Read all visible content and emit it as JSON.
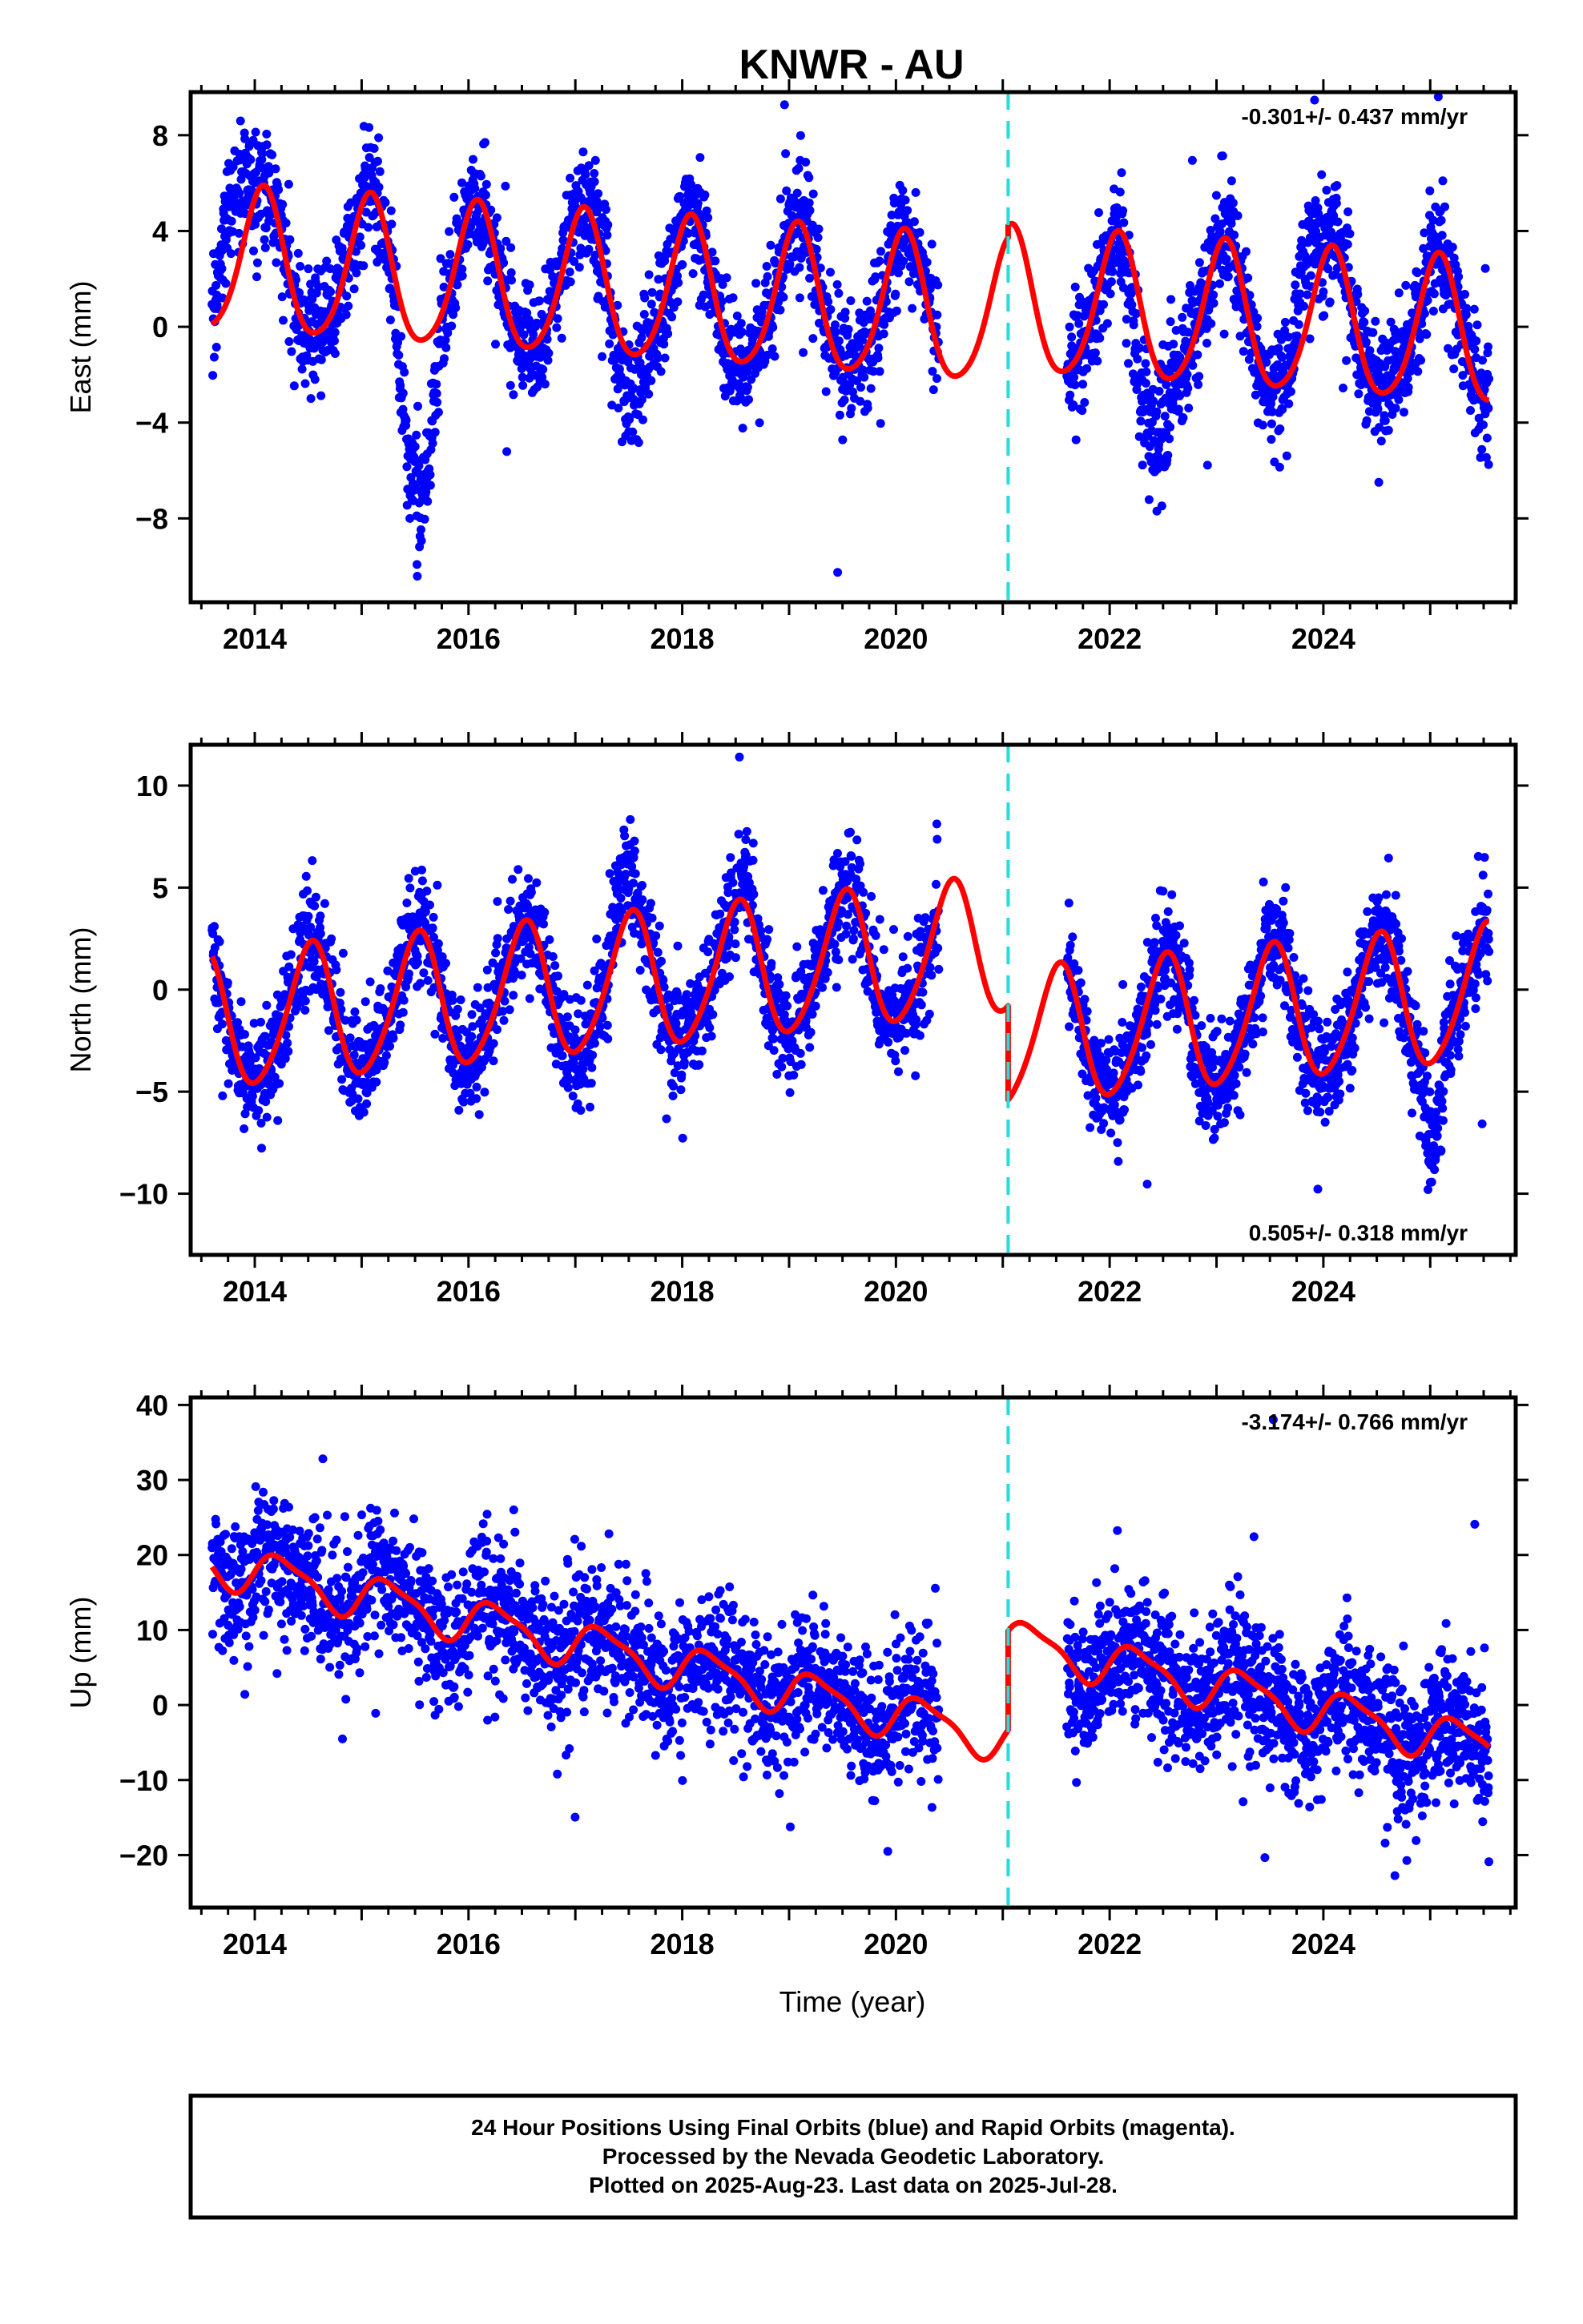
{
  "title": "KNWR - AU",
  "x_axis_title": "Time (year)",
  "footer": {
    "lines": [
      "24 Hour Positions Using Final Orbits (blue) and Rapid Orbits (magenta).",
      "Processed by the Nevada Geodetic Laboratory.",
      "Plotted on 2025-Aug-23. Last data on 2025-Jul-28."
    ]
  },
  "colors": {
    "data_points": "#0000ff",
    "model_line": "#ff0000",
    "equipment_change": "#22dddd",
    "frame": "#000000"
  },
  "chart_data": [
    {
      "type": "scatter",
      "component": "east",
      "ylabel": "East (mm)",
      "rate_label": "-0.301+/- 0.437 mm/yr",
      "xlim": [
        2013.4,
        2025.8
      ],
      "ylim": [
        -11.5,
        9.8
      ],
      "xticks": [
        2014,
        2016,
        2018,
        2020,
        2022,
        2024
      ],
      "yticks": [
        -8,
        -4,
        0,
        4,
        8
      ],
      "ytick_labels": [
        "−8",
        "−4",
        "0",
        "4",
        "8"
      ],
      "xtick_labels": [
        "2014",
        "2016",
        "2018",
        "2020",
        "2022",
        "2024"
      ],
      "offset_epoch": 2021.05,
      "model": {
        "rate": -0.301,
        "ref_year": 2019.5,
        "offset_before": 0.9,
        "offset_after": 1.4,
        "annual_amplitude": 3.0,
        "annual_phase": 1.1,
        "semiannual_amplitude": 0.4,
        "semiannual_phase": 0.3
      },
      "data_segments": [
        {
          "from": 2013.6,
          "to": 2020.4,
          "n": 2000
        },
        {
          "from": 2021.6,
          "to": 2025.55,
          "n": 1300
        }
      ],
      "anomalies": [
        {
          "from": 2013.6,
          "to": 2014.0,
          "shift": 3.5
        },
        {
          "from": 2015.3,
          "to": 2015.75,
          "shift": -6.5
        },
        {
          "from": 2017.3,
          "to": 2017.7,
          "shift": -2.0
        },
        {
          "from": 2022.1,
          "to": 2022.6,
          "shift": -3.5
        },
        {
          "from": 2023.7,
          "to": 2024.0,
          "shift": 3.5
        }
      ],
      "scatter_sd": 1.2
    },
    {
      "type": "scatter",
      "component": "north",
      "ylabel": "North (mm)",
      "rate_label": "0.505+/- 0.318 mm/yr",
      "xlim": [
        2013.4,
        2025.8
      ],
      "ylim": [
        -13,
        12
      ],
      "xticks": [
        2014,
        2016,
        2018,
        2020,
        2022,
        2024
      ],
      "yticks": [
        -10,
        -5,
        0,
        5,
        10
      ],
      "ytick_labels": [
        "−10",
        "−5",
        "0",
        "5",
        "10"
      ],
      "xtick_labels": [
        "2014",
        "2016",
        "2018",
        "2020",
        "2022",
        "2024"
      ],
      "offset_epoch": 2021.05,
      "model": {
        "rate": 0.505,
        "ref_year": 2019.5,
        "offset_before": 1.3,
        "offset_after": -3.3,
        "annual_amplitude": 3.3,
        "annual_phase": -1.7,
        "semiannual_amplitude": 0.4,
        "semiannual_phase": 0.5
      },
      "data_segments": [
        {
          "from": 2013.6,
          "to": 2020.4,
          "n": 2000
        },
        {
          "from": 2021.6,
          "to": 2025.55,
          "n": 1300
        }
      ],
      "anomalies": [
        {
          "from": 2017.3,
          "to": 2017.6,
          "shift": 2.5
        },
        {
          "from": 2018.5,
          "to": 2018.7,
          "shift": 1.5
        },
        {
          "from": 2024.9,
          "to": 2025.15,
          "shift": -4.0
        }
      ],
      "scatter_sd": 1.3
    },
    {
      "type": "scatter",
      "component": "up",
      "ylabel": "Up (mm)",
      "rate_label": "-3.174+/- 0.766 mm/yr",
      "xlim": [
        2013.4,
        2025.8
      ],
      "ylim": [
        -27,
        41
      ],
      "xticks": [
        2014,
        2016,
        2018,
        2020,
        2022,
        2024
      ],
      "yticks": [
        -20,
        -10,
        0,
        10,
        20,
        30,
        40
      ],
      "ytick_labels": [
        "−20",
        "−10",
        "0",
        "10",
        "20",
        "30",
        "40"
      ],
      "xtick_labels": [
        "2014",
        "2016",
        "2018",
        "2020",
        "2022",
        "2024"
      ],
      "offset_epoch": 2021.05,
      "model": {
        "rate": -3.174,
        "ref_year": 2019.5,
        "offset_before": 0.3,
        "offset_after": 13.5,
        "annual_amplitude": 2.8,
        "annual_phase": -0.1,
        "semiannual_amplitude": 0.8,
        "semiannual_phase": 0.4
      },
      "data_segments": [
        {
          "from": 2013.6,
          "to": 2020.4,
          "n": 2000
        },
        {
          "from": 2021.6,
          "to": 2025.55,
          "n": 1300
        }
      ],
      "anomalies": [],
      "scatter_sd": 4.5
    }
  ]
}
